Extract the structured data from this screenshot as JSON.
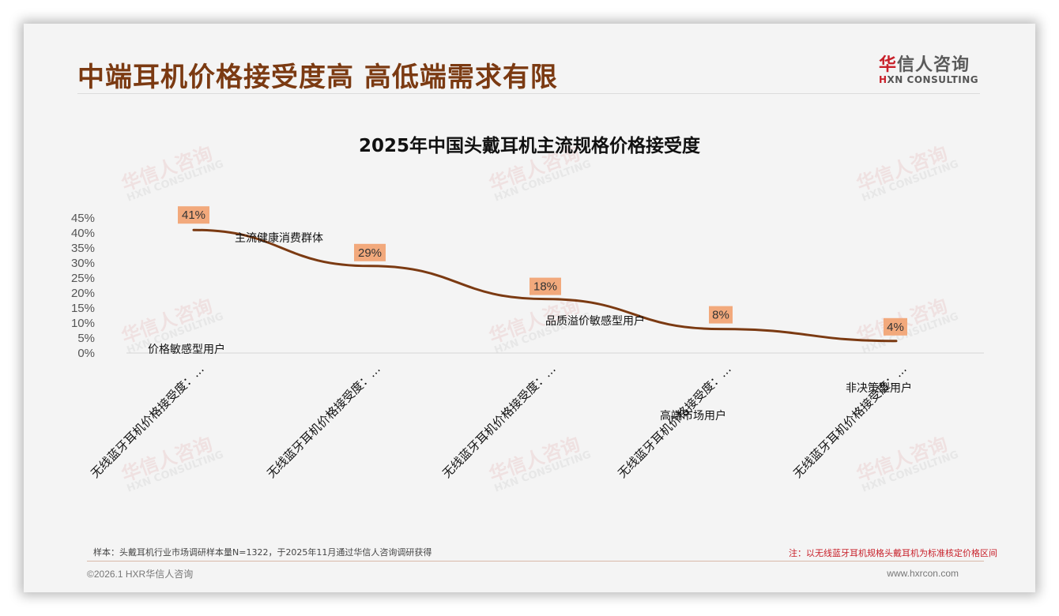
{
  "page": {
    "title": "中端耳机价格接受度高 高低端需求有限",
    "logo": {
      "cn_first": "华",
      "cn_rest": "信人咨询",
      "en_mark": "H",
      "en_rest": "XN CONSULTING"
    },
    "watermark": {
      "cn": "华信人咨询",
      "en": "HXN CONSULTING"
    }
  },
  "chart_data": {
    "type": "line",
    "title": "2025年中国头戴耳机主流规格价格接受度",
    "categories": [
      "无线蓝牙耳机价格接受度：…",
      "无线蓝牙耳机价格接受度：…",
      "无线蓝牙耳机价格接受度：…",
      "无线蓝牙耳机价格接受度：…",
      "无线蓝牙耳机价格接受度：…"
    ],
    "series": [
      {
        "name": "价格接受度",
        "values": [
          41,
          29,
          18,
          8,
          4
        ],
        "labels": [
          "41%",
          "29%",
          "18%",
          "8%",
          "4%"
        ],
        "color": "#7b3a12"
      }
    ],
    "annotations": [
      "价格敏感型用户",
      "主流健康消费群体",
      "品质溢价敏感型用户",
      "高端市场用户",
      "非决策型用户"
    ],
    "yticks": [
      "0%",
      "5%",
      "10%",
      "15%",
      "20%",
      "25%",
      "30%",
      "35%",
      "40%",
      "45%"
    ],
    "ylim": [
      0,
      45
    ],
    "xlabel": "",
    "ylabel": "",
    "grid": false,
    "legend": "none",
    "label_bg_color": "#f2a97c"
  },
  "footer": {
    "sample_note": "样本：头戴耳机行业市场调研样本量N=1322，于2025年11月通过华信人咨询调研获得",
    "red_note": "注：以无线蓝牙耳机规格头戴耳机为标准核定价格区间",
    "copyright": "©2026.1 HXR华信人咨询",
    "website": "www.hxrcon.com"
  }
}
